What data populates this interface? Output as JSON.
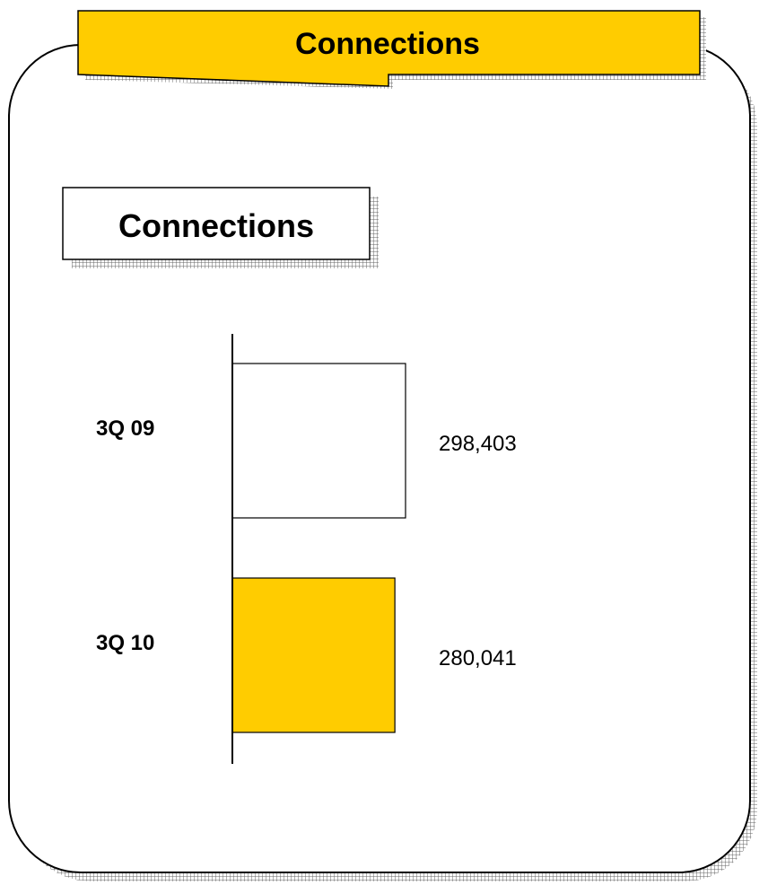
{
  "banner": {
    "title": "Connections"
  },
  "chart_data": {
    "type": "bar",
    "orientation": "horizontal",
    "title": "Connections",
    "categories": [
      "3Q 09",
      "3Q 10"
    ],
    "values": [
      298403,
      280041
    ],
    "value_labels": [
      "298,403",
      "280,041"
    ],
    "colors": [
      "#ffffff",
      "#ffcc00"
    ],
    "xlabel": "",
    "ylabel": "",
    "xlim": [
      0,
      298403
    ],
    "grid": false,
    "legend": false
  },
  "colors": {
    "accent": "#ffcc00",
    "border": "#000000"
  }
}
